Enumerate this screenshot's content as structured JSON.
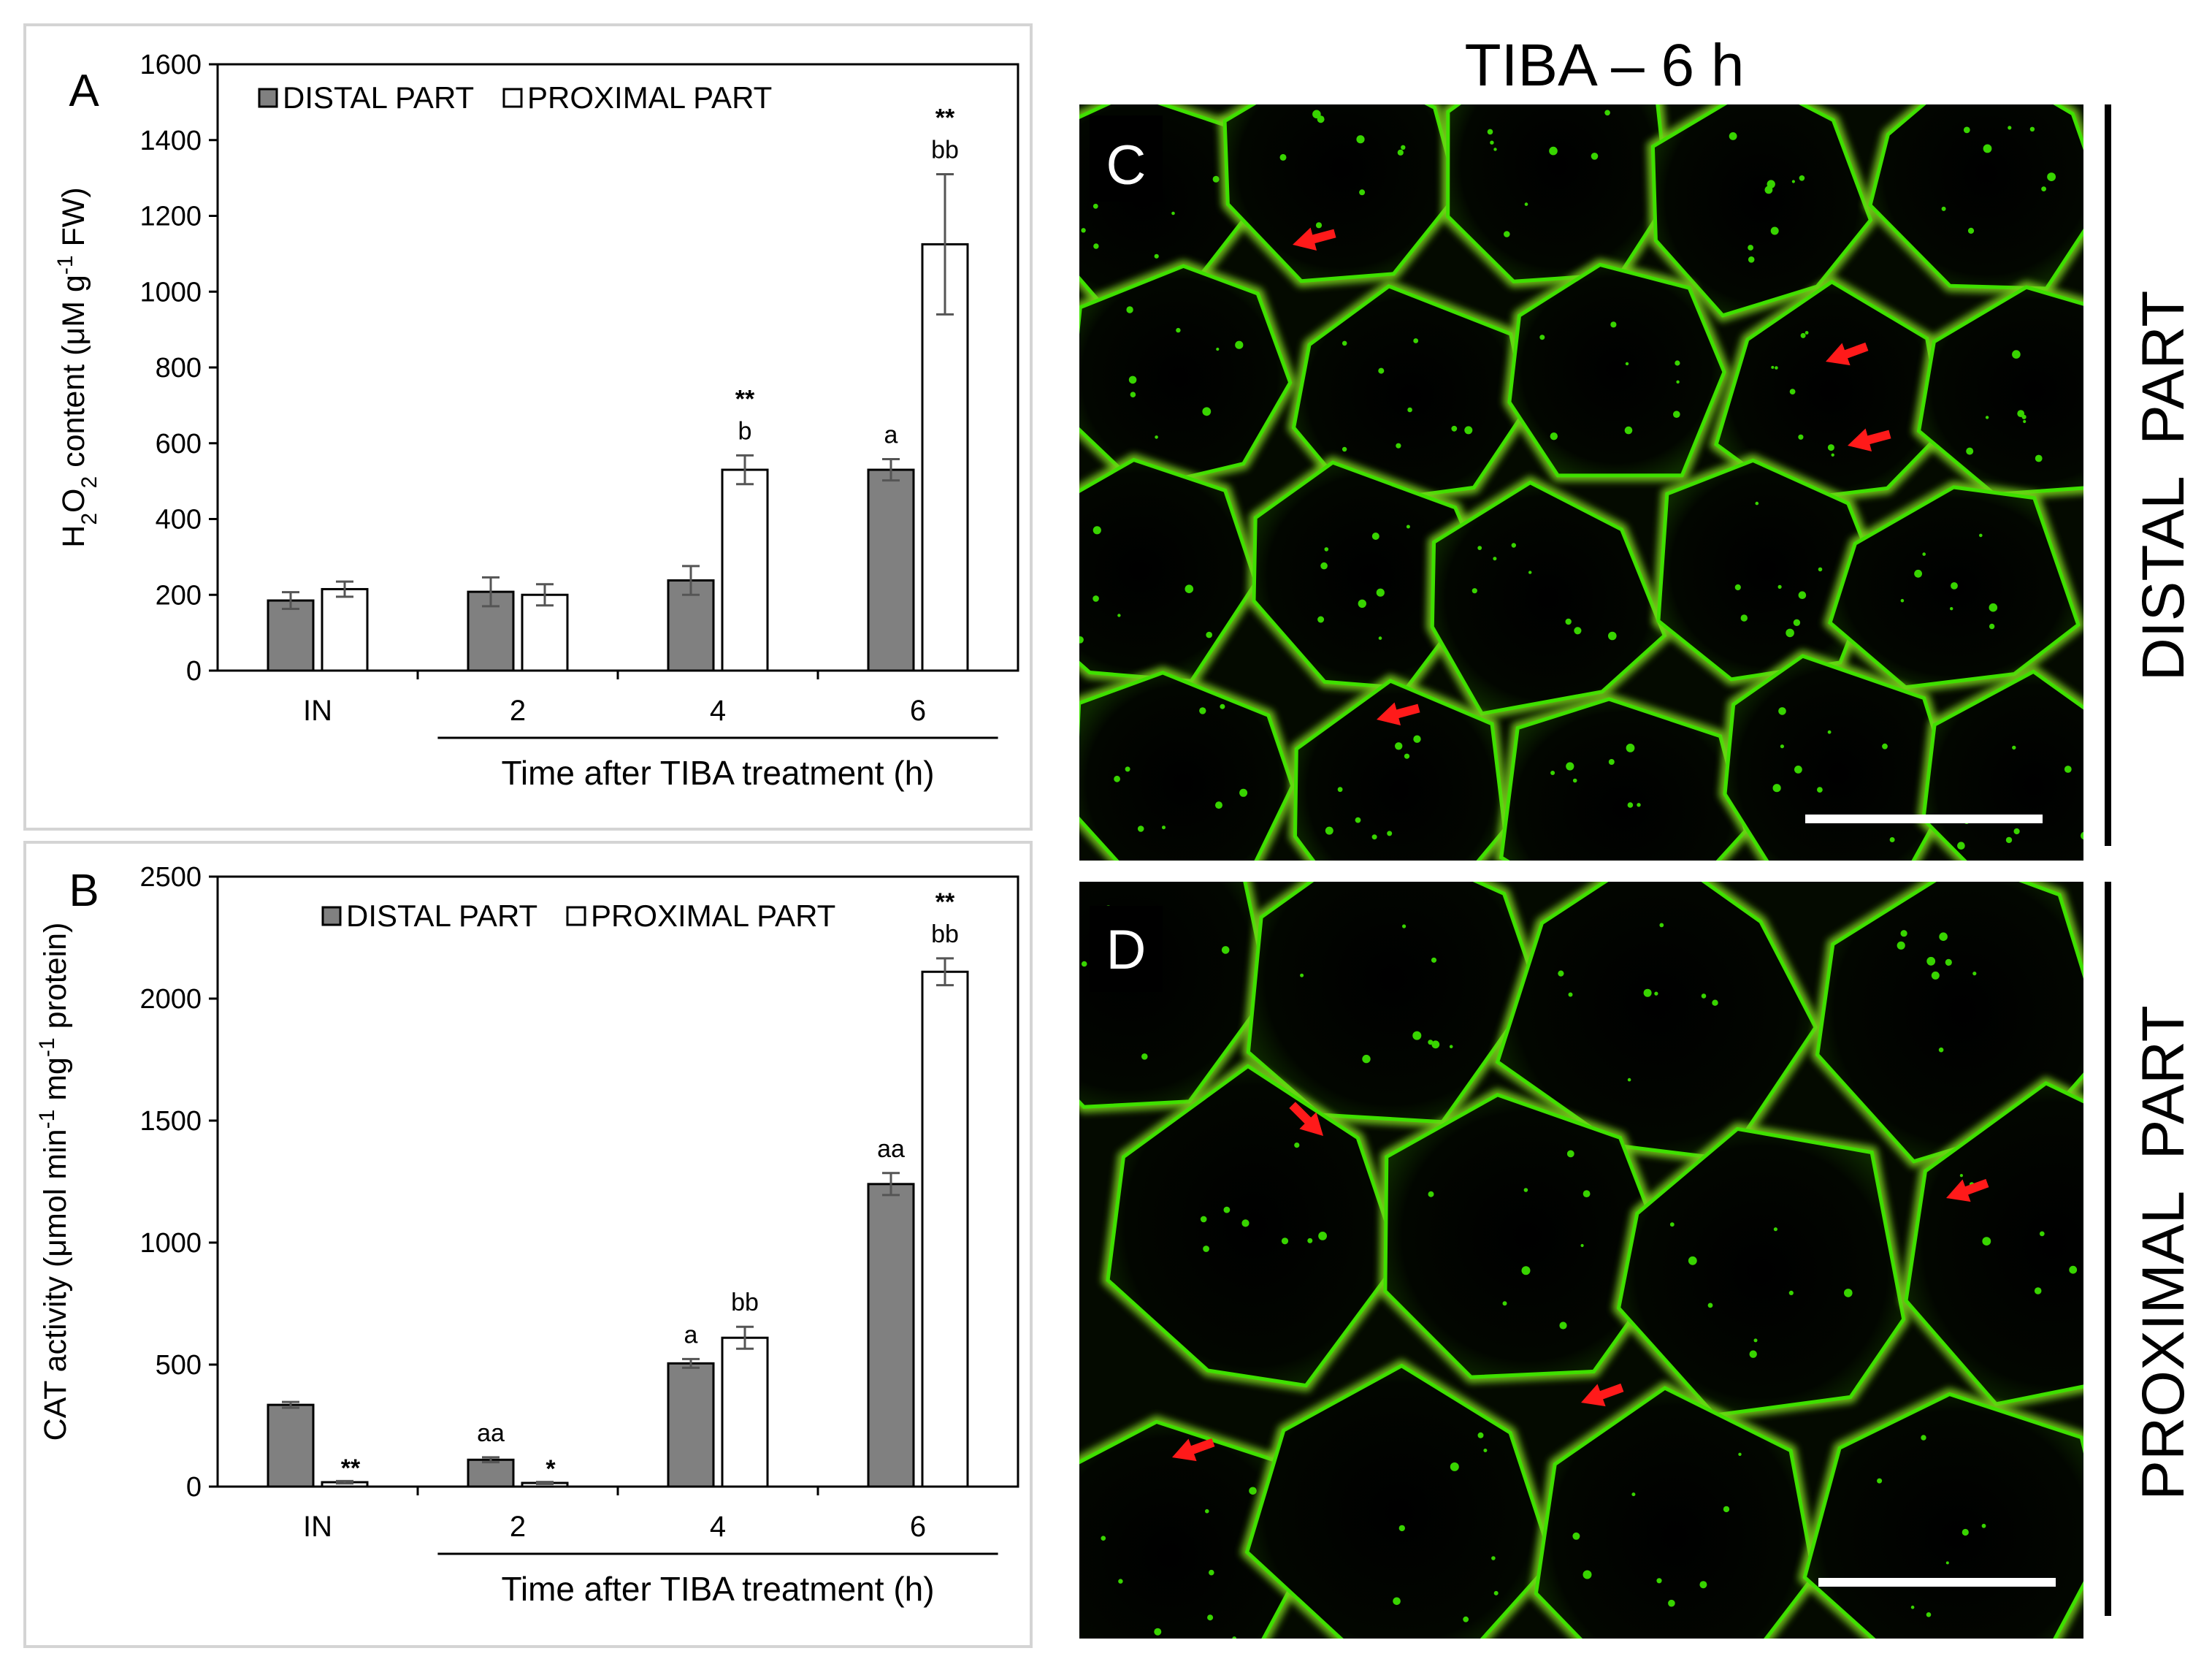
{
  "figure": {
    "micro_title": "TIBA – 6 h",
    "panel_c_letter": "C",
    "panel_d_letter": "D",
    "side_label_c": "DISTAL  PART",
    "side_label_d": "PROXIMAL  PART"
  },
  "chart_data": [
    {
      "panel": "A",
      "type": "bar",
      "categories": [
        "IN",
        "2",
        "4",
        "6"
      ],
      "series": [
        {
          "name": "DISTAL PART",
          "color": "#808080",
          "values": [
            185,
            208,
            238,
            530
          ],
          "errors": [
            22,
            38,
            38,
            28
          ],
          "labels": [
            "",
            "",
            "",
            "a"
          ]
        },
        {
          "name": "PROXIMAL PART",
          "color": "#ffffff",
          "values": [
            215,
            200,
            530,
            1125
          ],
          "errors": [
            20,
            28,
            38,
            185
          ],
          "labels": [
            "",
            "",
            "b",
            "bb"
          ],
          "stars": [
            "",
            "",
            "**",
            "**"
          ]
        }
      ],
      "ylim": [
        0,
        1600
      ],
      "yticks": [
        0,
        200,
        400,
        600,
        800,
        1000,
        1200,
        1400,
        1600
      ],
      "ylabel_parts": [
        {
          "t": "H",
          "s": "n"
        },
        {
          "t": "2",
          "s": "sub"
        },
        {
          "t": "O",
          "s": "n"
        },
        {
          "t": "2",
          "s": "sub"
        },
        {
          "t": " content (μM g",
          "s": "n"
        },
        {
          "t": "-1",
          "s": "sup"
        },
        {
          "t": " FW)",
          "s": "n"
        }
      ],
      "xlabel": "Time after TIBA treatment (h)",
      "grid": false,
      "legend_position": "top"
    },
    {
      "panel": "B",
      "type": "bar",
      "categories": [
        "IN",
        "2",
        "4",
        "6"
      ],
      "series": [
        {
          "name": "DISTAL PART",
          "color": "#808080",
          "values": [
            335,
            110,
            505,
            1240
          ],
          "errors": [
            12,
            10,
            18,
            45
          ],
          "labels": [
            "",
            "aa",
            "a",
            "aa"
          ]
        },
        {
          "name": "PROXIMAL PART",
          "color": "#ffffff",
          "values": [
            18,
            15,
            610,
            2110
          ],
          "errors": [
            5,
            4,
            45,
            55
          ],
          "labels": [
            "",
            "",
            "bb",
            "bb"
          ],
          "stars": [
            "**",
            "*",
            "",
            "**"
          ]
        }
      ],
      "ylim": [
        0,
        2500
      ],
      "yticks": [
        0,
        500,
        1000,
        1500,
        2000,
        2500
      ],
      "ylabel_parts": [
        {
          "t": "CAT activity (μmol min",
          "s": "n"
        },
        {
          "t": "-1",
          "s": "sup"
        },
        {
          "t": " mg",
          "s": "n"
        },
        {
          "t": "-1",
          "s": "sup"
        },
        {
          "t": " protein)",
          "s": "n"
        }
      ],
      "xlabel": "Time after TIBA treatment (h)",
      "grid": false,
      "legend_position": "top"
    }
  ]
}
